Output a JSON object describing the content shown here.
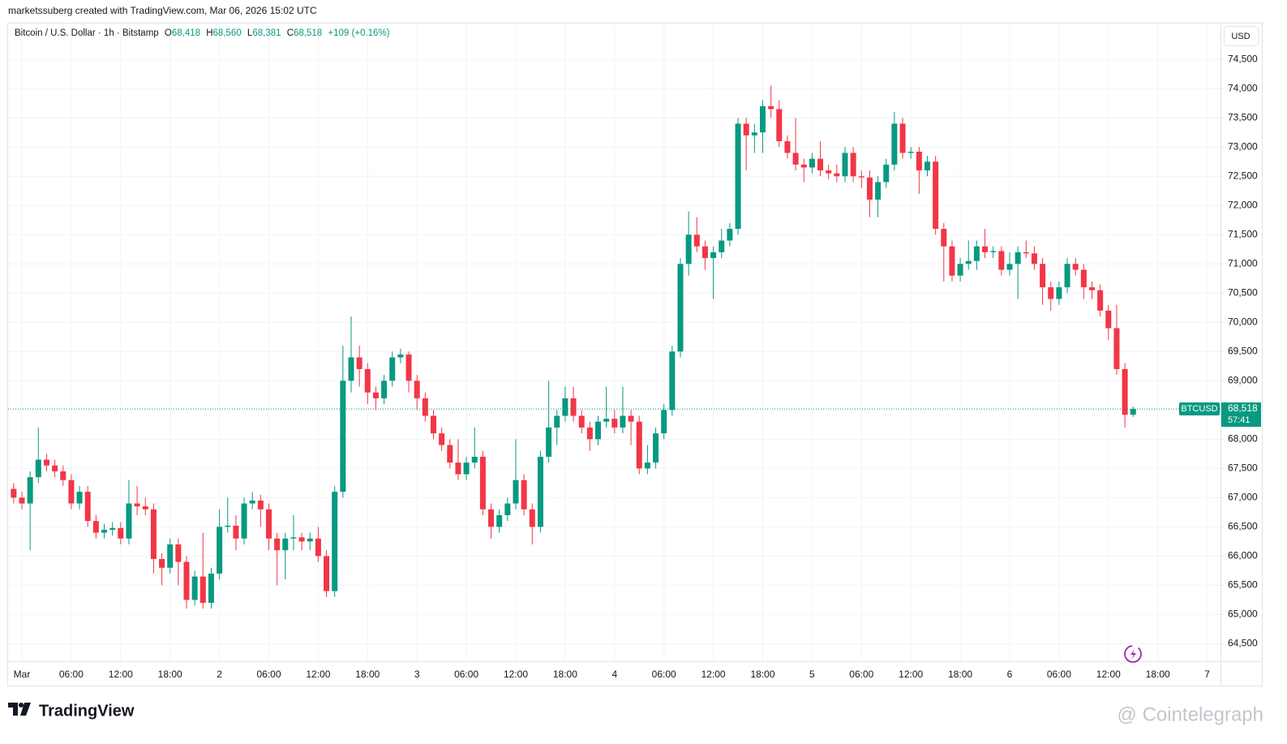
{
  "header": "marketssuberg created with TradingView.com, Mar 06, 2026 15:02 UTC",
  "footer": {
    "brand": "TradingView",
    "watermark": "@ Cointelegraph"
  },
  "chart_data": {
    "type": "candlestick",
    "legend": {
      "symbol": "Bitcoin / U.S. Dollar · 1h · Bitstamp",
      "o": "O",
      "open": "68,418",
      "h": "H",
      "high": "68,560",
      "l": "L",
      "low": "68,381",
      "c": "C",
      "close": "68,518",
      "change": "+109 (+0.16%)"
    },
    "currency": "USD",
    "up_color": "#089981",
    "down_color": "#f23645",
    "grid": true,
    "last_price": {
      "value": 68518,
      "label": "68,518"
    },
    "symbol_tag": "BTCUSD",
    "countdown": "57:41",
    "ylim": [
      64200,
      75100
    ],
    "yticks": [
      {
        "value": 64500,
        "label": "64,500"
      },
      {
        "value": 65000,
        "label": "65,000"
      },
      {
        "value": 65500,
        "label": "65,500"
      },
      {
        "value": 66000,
        "label": "66,000"
      },
      {
        "value": 66500,
        "label": "66,500"
      },
      {
        "value": 67000,
        "label": "67,000"
      },
      {
        "value": 67500,
        "label": "67,500"
      },
      {
        "value": 68000,
        "label": "68,000"
      },
      {
        "value": 68500,
        "label": "68,500"
      },
      {
        "value": 69000,
        "label": "69,000"
      },
      {
        "value": 69500,
        "label": "69,500"
      },
      {
        "value": 70000,
        "label": "70,000"
      },
      {
        "value": 70500,
        "label": "70,500"
      },
      {
        "value": 71000,
        "label": "71,000"
      },
      {
        "value": 71500,
        "label": "71,500"
      },
      {
        "value": 72000,
        "label": "72,000"
      },
      {
        "value": 72500,
        "label": "72,500"
      },
      {
        "value": 73000,
        "label": "73,000"
      },
      {
        "value": 73500,
        "label": "73,500"
      },
      {
        "value": 74000,
        "label": "74,000"
      },
      {
        "value": 74500,
        "label": "74,500"
      }
    ],
    "categories": [
      null,
      "Mar",
      null,
      null,
      null,
      null,
      null,
      "06:00",
      null,
      null,
      null,
      null,
      null,
      "12:00",
      null,
      null,
      null,
      null,
      null,
      "18:00",
      null,
      null,
      null,
      null,
      null,
      "2",
      null,
      null,
      null,
      null,
      null,
      "06:00",
      null,
      null,
      null,
      null,
      null,
      "12:00",
      null,
      null,
      null,
      null,
      null,
      "18:00",
      null,
      null,
      null,
      null,
      null,
      "3",
      null,
      null,
      null,
      null,
      null,
      "06:00",
      null,
      null,
      null,
      null,
      null,
      "12:00",
      null,
      null,
      null,
      null,
      null,
      "18:00",
      null,
      null,
      null,
      null,
      null,
      "4",
      null,
      null,
      null,
      null,
      null,
      "06:00",
      null,
      null,
      null,
      null,
      null,
      "12:00",
      null,
      null,
      null,
      null,
      null,
      "18:00",
      null,
      null,
      null,
      null,
      null,
      "5",
      null,
      null,
      null,
      null,
      null,
      "06:00",
      null,
      null,
      null,
      null,
      null,
      "12:00",
      null,
      null,
      null,
      null,
      null,
      "18:00",
      null,
      null,
      null,
      null,
      null,
      "6",
      null,
      null,
      null,
      null,
      null,
      "06:00",
      null,
      null,
      null,
      null,
      null,
      "12:00",
      null,
      null,
      null,
      null,
      null,
      "18:00",
      null,
      null,
      null,
      null,
      null,
      "7"
    ],
    "open": [
      67150,
      67000,
      66900,
      67350,
      67650,
      67550,
      67450,
      67300,
      66900,
      67100,
      66600,
      66400,
      66450,
      66480,
      66300,
      66900,
      66850,
      66800,
      65950,
      65800,
      66200,
      65900,
      65250,
      65650,
      65200,
      65700,
      66500,
      66520,
      66300,
      66900,
      66950,
      66800,
      66300,
      66100,
      66300,
      66320,
      66250,
      66300,
      66000,
      65400,
      67100,
      69000,
      69400,
      69200,
      68800,
      68700,
      69000,
      69400,
      69450,
      69000,
      68700,
      68400,
      68100,
      67900,
      67600,
      67400,
      67600,
      67700,
      66800,
      66500,
      66700,
      66900,
      67300,
      66800,
      66500,
      67700,
      68200,
      68400,
      68700,
      68400,
      68200,
      68000,
      68300,
      68350,
      68200,
      68400,
      68300,
      67500,
      67600,
      68100,
      68500,
      69500,
      71000,
      71500,
      71300,
      71100,
      71200,
      71400,
      71600,
      73400,
      73200,
      73250,
      73700,
      73650,
      73100,
      72900,
      72700,
      72650,
      72800,
      72600,
      72550,
      72500,
      72900,
      72500,
      72480,
      72100,
      72400,
      72700,
      73400,
      72900,
      72920,
      72600,
      72750,
      71600,
      71300,
      70800,
      71000,
      71050,
      71300,
      71200,
      71220,
      70900,
      71000,
      71200,
      71180,
      71000,
      70600,
      70400,
      70600,
      71000,
      70900,
      70600,
      70550,
      70200,
      69900,
      69200,
      68418,
      null,
      null,
      null,
      null,
      null,
      null,
      null,
      null,
      null
    ],
    "high": [
      67250,
      67100,
      67450,
      68200,
      67750,
      67650,
      67550,
      67400,
      67200,
      67200,
      66700,
      66550,
      66580,
      66580,
      67300,
      67200,
      67000,
      66900,
      66050,
      66300,
      66300,
      66000,
      65750,
      66400,
      65800,
      66800,
      67000,
      66700,
      67000,
      67100,
      67050,
      66900,
      66400,
      66400,
      66700,
      66400,
      66400,
      66500,
      66100,
      67200,
      69600,
      70100,
      69600,
      69300,
      68900,
      69100,
      69500,
      69550,
      69500,
      69100,
      68800,
      68500,
      68200,
      68000,
      68000,
      67700,
      68200,
      67800,
      66900,
      66800,
      67000,
      68000,
      67400,
      66900,
      67800,
      69000,
      68500,
      68900,
      68900,
      68500,
      68300,
      68400,
      68900,
      68500,
      68900,
      68500,
      68400,
      67900,
      68200,
      68600,
      69600,
      71100,
      71900,
      71800,
      71400,
      71300,
      71600,
      71700,
      73500,
      73500,
      73400,
      73800,
      74050,
      73800,
      73200,
      73500,
      72800,
      72900,
      73100,
      72700,
      72700,
      73000,
      73000,
      72600,
      72600,
      72500,
      72800,
      73600,
      73500,
      73000,
      73000,
      72850,
      72850,
      71700,
      71400,
      71100,
      71400,
      71400,
      71600,
      71300,
      71300,
      71200,
      71300,
      71400,
      71300,
      71100,
      70700,
      70700,
      71100,
      71100,
      71000,
      70700,
      70650,
      70300,
      70300,
      69300,
      68560,
      null,
      null,
      null,
      null,
      null,
      null,
      null,
      null,
      null
    ],
    "low": [
      66900,
      66800,
      66100,
      67250,
      67450,
      67350,
      67200,
      66800,
      66800,
      66500,
      66300,
      66300,
      66350,
      66200,
      66200,
      66700,
      66700,
      65700,
      65500,
      65700,
      65500,
      65100,
      65150,
      65100,
      65100,
      65600,
      66400,
      66100,
      66200,
      66800,
      66500,
      66100,
      65500,
      65600,
      66100,
      66100,
      66100,
      65900,
      65300,
      65300,
      67000,
      68800,
      68900,
      68600,
      68500,
      68600,
      68900,
      69300,
      68800,
      68500,
      68300,
      68000,
      67800,
      67500,
      67300,
      67300,
      67500,
      66700,
      66300,
      66400,
      66600,
      66800,
      66700,
      66200,
      66400,
      67600,
      67900,
      68300,
      68300,
      68100,
      67800,
      67900,
      68200,
      68100,
      68100,
      67900,
      67400,
      67400,
      67500,
      68000,
      68400,
      69400,
      70800,
      71200,
      70900,
      70400,
      71100,
      71300,
      71500,
      72600,
      72900,
      72900,
      73500,
      73000,
      72800,
      72600,
      72400,
      72550,
      72500,
      72450,
      72400,
      72400,
      72400,
      72300,
      71800,
      71800,
      72300,
      72600,
      72800,
      72800,
      72200,
      72500,
      71500,
      70700,
      70700,
      70700,
      70900,
      70900,
      71100,
      71100,
      70800,
      70800,
      70400,
      71100,
      70900,
      70300,
      70200,
      70300,
      70500,
      70800,
      70400,
      70400,
      70100,
      69700,
      69100,
      68200,
      68381,
      null,
      null,
      null,
      null,
      null,
      null,
      null,
      null,
      null
    ],
    "close": [
      67000,
      66900,
      67350,
      67650,
      67550,
      67450,
      67300,
      66900,
      67100,
      66600,
      66400,
      66450,
      66480,
      66300,
      66900,
      66850,
      66800,
      65950,
      65800,
      66200,
      65900,
      65250,
      65650,
      65200,
      65700,
      66500,
      66520,
      66300,
      66900,
      66950,
      66800,
      66300,
      66100,
      66300,
      66320,
      66250,
      66300,
      66000,
      65400,
      67100,
      69000,
      69400,
      69200,
      68800,
      68700,
      69000,
      69400,
      69450,
      69000,
      68700,
      68400,
      68100,
      67900,
      67600,
      67400,
      67600,
      67700,
      66800,
      66500,
      66700,
      66900,
      67300,
      66800,
      66500,
      67700,
      68200,
      68400,
      68700,
      68400,
      68200,
      68000,
      68300,
      68350,
      68200,
      68400,
      68300,
      67500,
      67600,
      68100,
      68500,
      69500,
      71000,
      71500,
      71300,
      71100,
      71200,
      71400,
      71600,
      73400,
      73200,
      73250,
      73700,
      73650,
      73100,
      72900,
      72700,
      72650,
      72800,
      72600,
      72550,
      72500,
      72900,
      72500,
      72480,
      72100,
      72400,
      72700,
      73400,
      72900,
      72920,
      72600,
      72750,
      71600,
      71300,
      70800,
      71000,
      71050,
      71300,
      71200,
      71220,
      70900,
      71000,
      71200,
      71180,
      71000,
      70600,
      70400,
      70600,
      71000,
      70900,
      70600,
      70550,
      70200,
      69900,
      69200,
      68418,
      68518,
      null,
      null,
      null,
      null,
      null,
      null,
      null,
      null,
      null
    ]
  }
}
